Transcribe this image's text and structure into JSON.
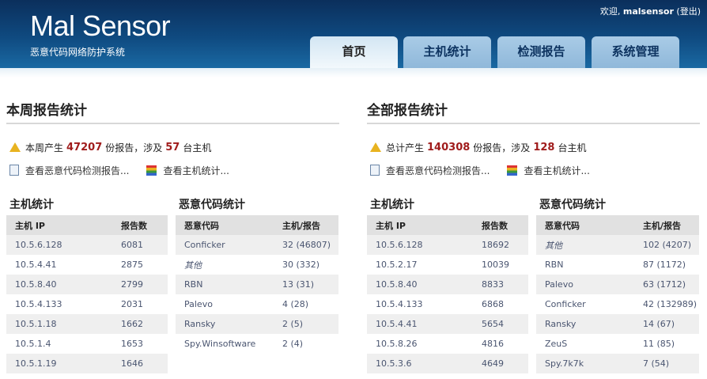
{
  "header": {
    "logo": "Mal Sensor",
    "subtitle": "恶意代码网络防护系统",
    "welcome_prefix": "欢迎,",
    "user": "malsensor",
    "logout": "(登出)"
  },
  "tabs": [
    {
      "label": "首页",
      "active": true
    },
    {
      "label": "主机统计"
    },
    {
      "label": "检测报告"
    },
    {
      "label": "系统管理"
    }
  ],
  "weekly": {
    "title": "本周报告统计",
    "alert_prefix": "本周产生",
    "reports": "47207",
    "alert_mid": "份报告，涉及",
    "hosts": "57",
    "alert_suffix": "台主机",
    "link_reports": "查看恶意代码检测报告...",
    "link_hosts": "查看主机统计...",
    "host_title": "主机统计",
    "host_cols": [
      "主机 IP",
      "报告数"
    ],
    "host_rows": [
      [
        "10.5.6.128",
        "6081"
      ],
      [
        "10.5.4.41",
        "2875"
      ],
      [
        "10.5.8.40",
        "2799"
      ],
      [
        "10.5.4.133",
        "2031"
      ],
      [
        "10.5.1.18",
        "1662"
      ],
      [
        "10.5.1.4",
        "1653"
      ],
      [
        "10.5.1.19",
        "1646"
      ]
    ],
    "mal_title": "恶意代码统计",
    "mal_cols": [
      "恶意代码",
      "主机/报告"
    ],
    "mal_rows": [
      [
        "Conficker",
        "32 (46807)"
      ],
      [
        "其他",
        "30 (332)"
      ],
      [
        "RBN",
        "13 (31)"
      ],
      [
        "Palevo",
        "4 (28)"
      ],
      [
        "Ransky",
        "2 (5)"
      ],
      [
        "Spy.Winsoftware",
        "2 (4)"
      ]
    ]
  },
  "total": {
    "title": "全部报告统计",
    "alert_prefix": "总计产生",
    "reports": "140308",
    "alert_mid": "份报告，涉及",
    "hosts": "128",
    "alert_suffix": "台主机",
    "link_reports": "查看恶意代码检测报告...",
    "link_hosts": "查看主机统计...",
    "host_title": "主机统计",
    "host_cols": [
      "主机 IP",
      "报告数"
    ],
    "host_rows": [
      [
        "10.5.6.128",
        "18692"
      ],
      [
        "10.5.2.17",
        "10039"
      ],
      [
        "10.5.8.40",
        "8833"
      ],
      [
        "10.5.4.133",
        "6868"
      ],
      [
        "10.5.4.41",
        "5654"
      ],
      [
        "10.5.8.26",
        "4816"
      ],
      [
        "10.5.3.6",
        "4649"
      ]
    ],
    "mal_title": "恶意代码统计",
    "mal_cols": [
      "恶意代码",
      "主机/报告"
    ],
    "mal_rows": [
      [
        "其他",
        "102 (4207)"
      ],
      [
        "RBN",
        "87 (1172)"
      ],
      [
        "Palevo",
        "63 (1712)"
      ],
      [
        "Conficker",
        "42 (132989)"
      ],
      [
        "Ransky",
        "14 (67)"
      ],
      [
        "ZeuS",
        "11 (85)"
      ],
      [
        "Spy.7k7k",
        "7 (54)"
      ]
    ]
  }
}
